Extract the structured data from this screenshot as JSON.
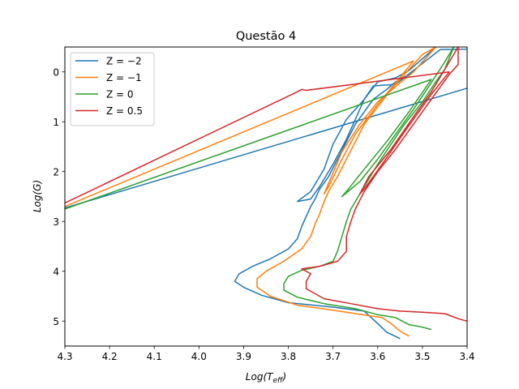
{
  "chart_data": {
    "type": "line",
    "title": "Questão 4",
    "xlabel": "Log(Teff)",
    "ylabel": "Log(G)",
    "xlim": [
      4.3,
      3.4
    ],
    "ylim": [
      5.5,
      -0.5
    ],
    "x_inverted": true,
    "y_inverted": true,
    "x_ticks": [
      4.3,
      4.2,
      4.1,
      4.0,
      3.9,
      3.8,
      3.7,
      3.6,
      3.5,
      3.4
    ],
    "x_tick_labels": [
      "4.3",
      "4.2",
      "4.1",
      "4.0",
      "3.9",
      "3.8",
      "3.7",
      "3.6",
      "3.5",
      "3.4"
    ],
    "y_ticks": [
      0,
      1,
      2,
      3,
      4,
      5
    ],
    "y_tick_labels": [
      "0",
      "1",
      "2",
      "3",
      "4",
      "5"
    ],
    "grid": false,
    "legend_position": "top-left",
    "series": [
      {
        "name": "Z = −2",
        "color": "#1f77b4",
        "points": [
          [
            3.55,
            5.35
          ],
          [
            3.58,
            5.22
          ],
          [
            3.6,
            5.05
          ],
          [
            3.63,
            4.8
          ],
          [
            3.7,
            4.72
          ],
          [
            3.8,
            4.63
          ],
          [
            3.86,
            4.48
          ],
          [
            3.9,
            4.32
          ],
          [
            3.92,
            4.2
          ],
          [
            3.91,
            4.05
          ],
          [
            3.88,
            3.9
          ],
          [
            3.84,
            3.75
          ],
          [
            3.8,
            3.55
          ],
          [
            3.78,
            3.35
          ],
          [
            3.77,
            3.1
          ],
          [
            3.76,
            2.9
          ],
          [
            3.75,
            2.7
          ],
          [
            3.74,
            2.55
          ],
          [
            3.73,
            2.35
          ],
          [
            3.71,
            2.1
          ],
          [
            3.69,
            1.75
          ],
          [
            3.67,
            1.4
          ],
          [
            3.65,
            1.05
          ],
          [
            3.63,
            0.8
          ],
          [
            3.61,
            0.55
          ],
          [
            3.58,
            0.35
          ],
          [
            3.56,
            0.2
          ],
          [
            3.53,
            0.05
          ],
          [
            3.51,
            -0.1
          ],
          [
            3.49,
            -0.3
          ],
          [
            3.47,
            -0.5
          ],
          [
            3.53,
            -0.03
          ],
          [
            3.56,
            0.12
          ],
          [
            3.6,
            0.2
          ],
          [
            3.63,
            0.55
          ],
          [
            3.67,
            0.95
          ],
          [
            3.7,
            1.45
          ],
          [
            3.72,
            1.95
          ],
          [
            3.75,
            2.4
          ],
          [
            3.78,
            2.6
          ],
          [
            3.75,
            2.55
          ],
          [
            3.73,
            2.3
          ],
          [
            3.7,
            1.85
          ],
          [
            3.67,
            1.35
          ],
          [
            3.65,
            0.95
          ],
          [
            3.63,
            0.55
          ],
          [
            3.61,
            0.28
          ],
          [
            3.56,
            0.25
          ],
          [
            3.46,
            -0.45
          ],
          [
            3.09,
            -0.5
          ],
          [
            4.3,
            2.73
          ]
        ]
      },
      {
        "name": "Z = −1",
        "color": "#ff7f0e",
        "points": [
          [
            3.53,
            5.3
          ],
          [
            3.55,
            5.2
          ],
          [
            3.57,
            5.05
          ],
          [
            3.59,
            4.93
          ],
          [
            3.65,
            4.85
          ],
          [
            3.7,
            4.78
          ],
          [
            3.78,
            4.68
          ],
          [
            3.84,
            4.5
          ],
          [
            3.87,
            4.32
          ],
          [
            3.87,
            4.15
          ],
          [
            3.85,
            4.0
          ],
          [
            3.81,
            3.8
          ],
          [
            3.77,
            3.55
          ],
          [
            3.75,
            3.3
          ],
          [
            3.74,
            3.05
          ],
          [
            3.73,
            2.85
          ],
          [
            3.72,
            2.6
          ],
          [
            3.71,
            2.4
          ],
          [
            3.69,
            2.1
          ],
          [
            3.67,
            1.75
          ],
          [
            3.65,
            1.4
          ],
          [
            3.63,
            1.05
          ],
          [
            3.6,
            0.7
          ],
          [
            3.57,
            0.35
          ],
          [
            3.54,
            0.05
          ],
          [
            3.5,
            -0.35
          ],
          [
            3.47,
            -0.5
          ],
          [
            3.52,
            0.0
          ],
          [
            3.55,
            0.22
          ],
          [
            3.6,
            0.6
          ],
          [
            3.64,
            1.05
          ],
          [
            3.68,
            1.6
          ],
          [
            3.72,
            2.45
          ],
          [
            3.71,
            2.3
          ],
          [
            3.68,
            1.75
          ],
          [
            3.65,
            1.25
          ],
          [
            3.6,
            0.65
          ],
          [
            3.54,
            0.0
          ],
          [
            3.52,
            -0.22
          ],
          [
            4.3,
            2.7
          ]
        ]
      },
      {
        "name": "Z = 0",
        "color": "#2ca02c",
        "points": [
          [
            3.48,
            5.17
          ],
          [
            3.5,
            5.12
          ],
          [
            3.53,
            5.07
          ],
          [
            3.56,
            4.93
          ],
          [
            3.6,
            4.87
          ],
          [
            3.65,
            4.75
          ],
          [
            3.72,
            4.65
          ],
          [
            3.78,
            4.52
          ],
          [
            3.81,
            4.38
          ],
          [
            3.81,
            4.25
          ],
          [
            3.8,
            4.1
          ],
          [
            3.77,
            3.98
          ],
          [
            3.73,
            3.9
          ],
          [
            3.7,
            3.8
          ],
          [
            3.69,
            3.6
          ],
          [
            3.68,
            3.3
          ],
          [
            3.67,
            3.0
          ],
          [
            3.66,
            2.75
          ],
          [
            3.64,
            2.45
          ],
          [
            3.62,
            2.15
          ],
          [
            3.6,
            1.85
          ],
          [
            3.57,
            1.45
          ],
          [
            3.54,
            1.05
          ],
          [
            3.5,
            0.6
          ],
          [
            3.47,
            0.2
          ],
          [
            3.45,
            -0.05
          ],
          [
            3.43,
            -0.5
          ],
          [
            3.45,
            -0.2
          ],
          [
            3.49,
            0.35
          ],
          [
            3.52,
            0.75
          ],
          [
            3.56,
            1.25
          ],
          [
            3.6,
            1.75
          ],
          [
            3.64,
            2.2
          ],
          [
            3.68,
            2.5
          ],
          [
            3.67,
            2.4
          ],
          [
            3.63,
            1.95
          ],
          [
            3.58,
            1.4
          ],
          [
            3.53,
            0.8
          ],
          [
            3.48,
            0.15
          ],
          [
            4.3,
            2.75
          ]
        ]
      },
      {
        "name": "Z = 0.5",
        "color": "#d62728",
        "points": [
          [
            3.4,
            5.0
          ],
          [
            3.42,
            4.95
          ],
          [
            3.45,
            4.85
          ],
          [
            3.5,
            4.82
          ],
          [
            3.55,
            4.8
          ],
          [
            3.6,
            4.75
          ],
          [
            3.66,
            4.65
          ],
          [
            3.72,
            4.55
          ],
          [
            3.76,
            4.35
          ],
          [
            3.76,
            4.2
          ],
          [
            3.75,
            4.05
          ],
          [
            3.77,
            3.95
          ],
          [
            3.73,
            3.9
          ],
          [
            3.69,
            3.8
          ],
          [
            3.67,
            3.6
          ],
          [
            3.67,
            3.3
          ],
          [
            3.66,
            3.0
          ],
          [
            3.65,
            2.75
          ],
          [
            3.63,
            2.4
          ],
          [
            3.6,
            2.0
          ],
          [
            3.56,
            1.55
          ],
          [
            3.52,
            1.05
          ],
          [
            3.48,
            0.55
          ],
          [
            3.44,
            0.05
          ],
          [
            3.42,
            -0.15
          ],
          [
            3.42,
            -0.5
          ],
          [
            3.45,
            -0.05
          ],
          [
            3.48,
            0.4
          ],
          [
            3.52,
            0.9
          ],
          [
            3.57,
            1.55
          ],
          [
            3.62,
            2.1
          ],
          [
            3.64,
            2.45
          ],
          [
            3.63,
            2.35
          ],
          [
            3.59,
            1.85
          ],
          [
            3.54,
            1.2
          ],
          [
            3.48,
            0.45
          ],
          [
            3.44,
            0.0
          ],
          [
            3.76,
            0.37
          ],
          [
            3.77,
            0.35
          ],
          [
            3.78,
            0.4
          ],
          [
            4.3,
            2.63
          ]
        ]
      }
    ]
  },
  "legend_items": [
    {
      "label": "Z = −2",
      "color": "#1f77b4"
    },
    {
      "label": "Z = −1",
      "color": "#ff7f0e"
    },
    {
      "label": "Z = 0",
      "color": "#2ca02c"
    },
    {
      "label": "Z = 0.5",
      "color": "#d62728"
    }
  ]
}
